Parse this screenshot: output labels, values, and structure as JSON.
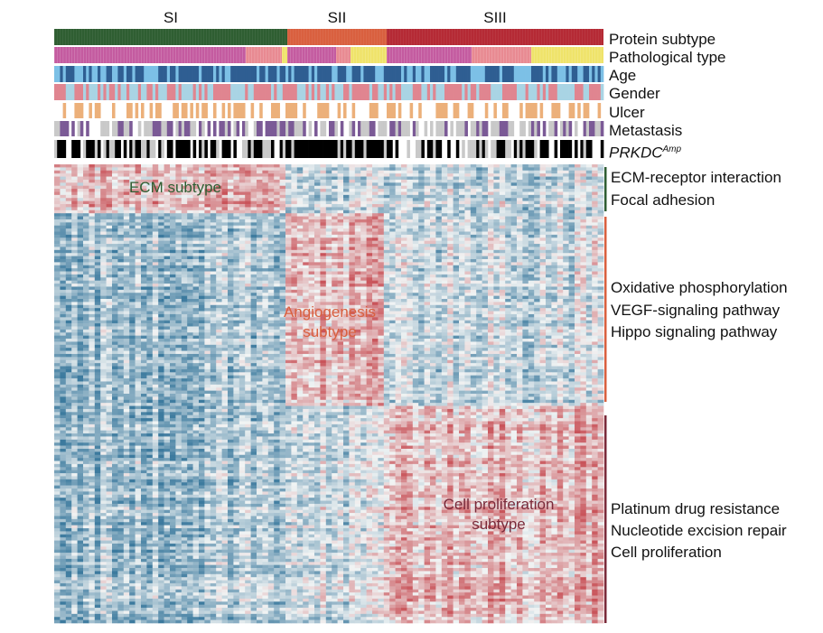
{
  "chart_data": {
    "type": "heatmap",
    "column_groups": [
      {
        "name": "SI",
        "color": "#2f5e32"
      },
      {
        "name": "SII",
        "color": "#d9603f"
      },
      {
        "name": "SIII",
        "color": "#b52a35"
      }
    ],
    "annotation_tracks": [
      {
        "name": "Protein subtype"
      },
      {
        "name": "Pathological type"
      },
      {
        "name": "Age"
      },
      {
        "name": "Gender"
      },
      {
        "name": "Ulcer"
      },
      {
        "name": "Metastasis"
      },
      {
        "name": "PRKDC",
        "superscript": "Amp"
      }
    ],
    "row_blocks": [
      {
        "subtype": "ECM subtype",
        "color": "#2f5e32",
        "pathways": [
          "ECM-receptor interaction",
          "Focal adhesion"
        ]
      },
      {
        "subtype_lines": [
          "Angiogenesis",
          "subtype"
        ],
        "color": "#d9603f",
        "pathways": [
          "Oxidative phosphorylation",
          "VEGF-signaling pathway",
          "Hippo signaling pathway"
        ]
      },
      {
        "subtype_lines": [
          "Cell proliferation",
          "subtype"
        ],
        "color": "#7a2a3a",
        "pathways": [
          "Platinum drug resistance",
          "Nucleotide excision repair",
          "Cell proliferation"
        ]
      }
    ],
    "colors": {
      "high": "#c9545a",
      "low": "#3c7a9e",
      "mid": "#f1f4f4",
      "path_pink": "#c45ba0",
      "path_rose": "#e88a92",
      "path_yellow": "#efe36a",
      "age_dark": "#2f5e92",
      "age_light": "#7cc0e6",
      "gender_pink": "#e08590",
      "gender_blue": "#a9d4e4",
      "ulcer": "#ecb07a",
      "meta_purple": "#7b5a96",
      "meta_gray": "#c9c9c9",
      "amp_black": "#000000",
      "amp_gray": "#c9c9c9"
    }
  }
}
